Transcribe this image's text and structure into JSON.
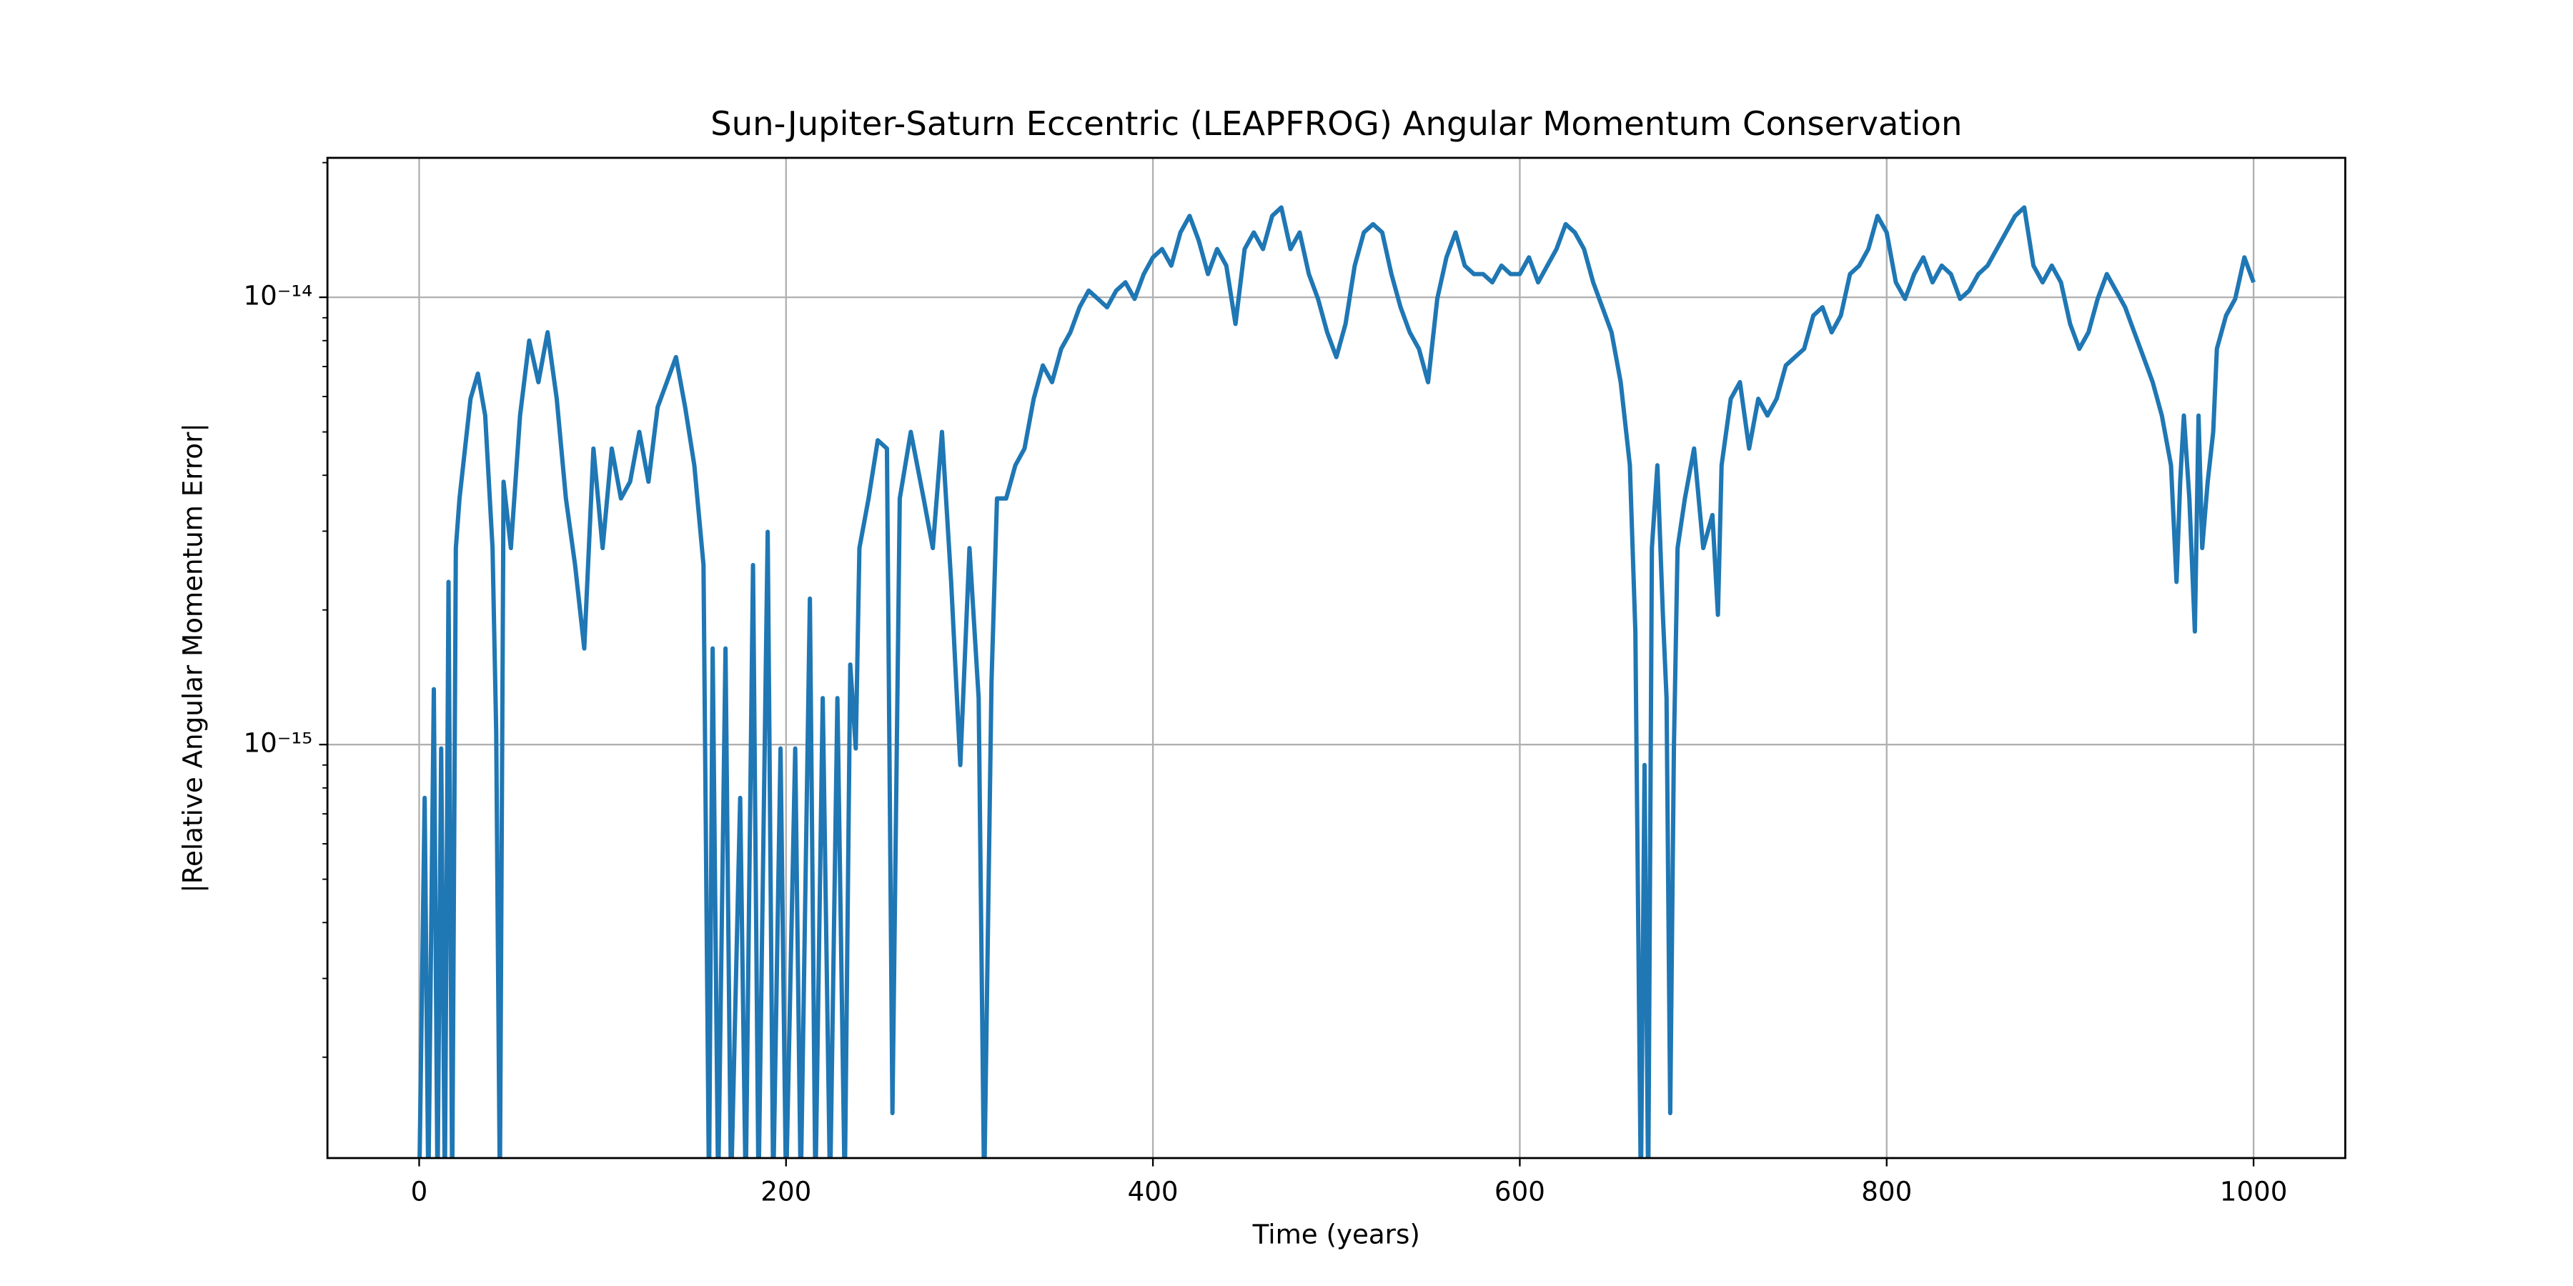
{
  "chart_data": {
    "type": "line",
    "title": "Sun-Jupiter-Saturn Eccentric (LEAPFROG) Angular Momentum Conservation",
    "xlabel": "Time (years)",
    "ylabel": "|Relative Angular Momentum Error|",
    "xlim": [
      -50,
      1050
    ],
    "ylim": [
      1.19e-16,
      2.05e-14
    ],
    "log_y": true,
    "grid": true,
    "xticks": [
      0,
      200,
      400,
      600,
      800,
      1000
    ],
    "yticks": [
      {
        "value": 1e-15,
        "label": "10⁻¹⁵"
      },
      {
        "value": 1e-14,
        "label": "10⁻¹⁴"
      }
    ],
    "yminorticks": [
      2e-16,
      3e-16,
      4e-16,
      5e-16,
      6e-16,
      7e-16,
      8e-16,
      9e-16,
      2e-15,
      3e-15,
      4e-15,
      5e-15,
      6e-15,
      7e-15,
      8e-15,
      9e-15,
      2e-14
    ],
    "series": [
      {
        "name": "Relative Angular Momentum Error",
        "color": "#1f77b4",
        "x": [
          0,
          3,
          5,
          8,
          10,
          12,
          14,
          16,
          18,
          20,
          22,
          25,
          28,
          32,
          36,
          40,
          42,
          44,
          46,
          50,
          55,
          60,
          65,
          70,
          75,
          80,
          85,
          90,
          95,
          100,
          105,
          110,
          115,
          120,
          125,
          130,
          135,
          140,
          145,
          150,
          155,
          158,
          160,
          163,
          167,
          170,
          175,
          178,
          182,
          185,
          190,
          193,
          197,
          200,
          205,
          208,
          213,
          216,
          220,
          224,
          228,
          232,
          235,
          238,
          240,
          245,
          250,
          255,
          258,
          262,
          268,
          275,
          280,
          285,
          290,
          295,
          300,
          305,
          308,
          312,
          315,
          320,
          325,
          330,
          335,
          340,
          345,
          350,
          355,
          360,
          365,
          370,
          375,
          380,
          385,
          390,
          395,
          400,
          405,
          410,
          415,
          420,
          425,
          430,
          435,
          440,
          445,
          450,
          455,
          460,
          465,
          470,
          475,
          480,
          485,
          490,
          495,
          500,
          505,
          510,
          515,
          520,
          525,
          530,
          535,
          540,
          545,
          550,
          555,
          560,
          565,
          570,
          575,
          580,
          585,
          590,
          595,
          600,
          605,
          610,
          615,
          620,
          625,
          630,
          635,
          640,
          645,
          650,
          655,
          660,
          663,
          666,
          668,
          670,
          672,
          675,
          678,
          680,
          682,
          684,
          686,
          690,
          695,
          700,
          705,
          708,
          710,
          715,
          720,
          725,
          730,
          735,
          740,
          745,
          750,
          755,
          760,
          765,
          770,
          775,
          780,
          785,
          790,
          795,
          800,
          805,
          810,
          815,
          820,
          825,
          830,
          835,
          840,
          845,
          850,
          855,
          860,
          865,
          870,
          875,
          880,
          885,
          890,
          895,
          900,
          905,
          910,
          915,
          920,
          925,
          930,
          935,
          940,
          945,
          950,
          955,
          958,
          960,
          962,
          965,
          968,
          970,
          972,
          975,
          978,
          980,
          985,
          990,
          995,
          1000
        ],
        "values": [
          1e-16,
          7.6e-16,
          1e-16,
          1.33e-15,
          1e-16,
          9.8e-16,
          1e-16,
          2.31e-15,
          1e-16,
          2.75e-15,
          3.55e-15,
          4.59e-15,
          5.93e-15,
          6.75e-15,
          5.44e-15,
          2.75e-15,
          1.07e-15,
          1e-16,
          3.87e-15,
          2.75e-15,
          5.44e-15,
          8e-15,
          6.46e-15,
          8.35e-15,
          5.93e-15,
          3.55e-15,
          2.52e-15,
          1.64e-15,
          4.59e-15,
          2.75e-15,
          4.59e-15,
          3.55e-15,
          3.87e-15,
          5e-15,
          3.87e-15,
          5.68e-15,
          6.46e-15,
          7.35e-15,
          5.68e-15,
          4.21e-15,
          2.52e-15,
          1e-16,
          1.64e-15,
          1e-16,
          1.64e-15,
          1e-16,
          7.6e-16,
          1e-16,
          2.52e-15,
          1e-16,
          2.99e-15,
          1e-16,
          9.8e-16,
          1e-16,
          9.8e-16,
          1e-16,
          2.12e-15,
          1e-16,
          1.27e-15,
          1e-16,
          1.27e-15,
          1e-16,
          1.51e-15,
          9.8e-16,
          2.75e-15,
          3.55e-15,
          4.79e-15,
          4.59e-15,
          1.5e-16,
          3.55e-15,
          5e-15,
          3.55e-15,
          2.75e-15,
          5e-15,
          2.31e-15,
          9e-16,
          2.75e-15,
          1.27e-15,
          1e-16,
          1.38e-15,
          3.55e-15,
          3.55e-15,
          4.21e-15,
          4.59e-15,
          5.93e-15,
          7.04e-15,
          6.46e-15,
          7.67e-15,
          8.35e-15,
          9.5e-15,
          1.035e-14,
          9.92e-15,
          9.5e-15,
          1.035e-14,
          1.08e-14,
          9.92e-15,
          1.127e-14,
          1.228e-14,
          1.282e-14,
          1.177e-14,
          1.396e-14,
          1.52e-14,
          1.338e-14,
          1.127e-14,
          1.282e-14,
          1.177e-14,
          8.72e-15,
          1.282e-14,
          1.396e-14,
          1.282e-14,
          1.52e-14,
          1.588e-14,
          1.282e-14,
          1.396e-14,
          1.127e-14,
          9.92e-15,
          8.35e-15,
          7.35e-15,
          8.72e-15,
          1.177e-14,
          1.396e-14,
          1.457e-14,
          1.396e-14,
          1.127e-14,
          9.5e-15,
          8.35e-15,
          7.67e-15,
          6.46e-15,
          9.92e-15,
          1.228e-14,
          1.396e-14,
          1.177e-14,
          1.127e-14,
          1.127e-14,
          1.08e-14,
          1.177e-14,
          1.127e-14,
          1.127e-14,
          1.228e-14,
          1.08e-14,
          1.177e-14,
          1.282e-14,
          1.457e-14,
          1.396e-14,
          1.282e-14,
          1.08e-14,
          9.5e-15,
          8.35e-15,
          6.46e-15,
          4.21e-15,
          1.79e-15,
          1e-16,
          9e-16,
          1e-16,
          2.75e-15,
          4.21e-15,
          1.95e-15,
          1.27e-15,
          1.5e-16,
          9.8e-16,
          2.75e-15,
          3.55e-15,
          4.59e-15,
          2.75e-15,
          3.26e-15,
          1.95e-15,
          4.21e-15,
          5.93e-15,
          6.46e-15,
          4.59e-15,
          5.93e-15,
          5.44e-15,
          5.93e-15,
          7.04e-15,
          7.35e-15,
          7.67e-15,
          9.1e-15,
          9.5e-15,
          8.35e-15,
          9.1e-15,
          1.127e-14,
          1.177e-14,
          1.282e-14,
          1.52e-14,
          1.396e-14,
          1.08e-14,
          9.92e-15,
          1.127e-14,
          1.228e-14,
          1.08e-14,
          1.177e-14,
          1.127e-14,
          9.92e-15,
          1.035e-14,
          1.127e-14,
          1.177e-14,
          1.282e-14,
          1.396e-14,
          1.52e-14,
          1.588e-14,
          1.177e-14,
          1.08e-14,
          1.177e-14,
          1.08e-14,
          8.72e-15,
          7.67e-15,
          8.35e-15,
          9.92e-15,
          1.127e-14,
          1.035e-14,
          9.5e-15,
          8.35e-15,
          7.35e-15,
          6.46e-15,
          5.44e-15,
          4.21e-15,
          2.31e-15,
          3.87e-15,
          5.44e-15,
          3.55e-15,
          1.79e-15,
          5.44e-15,
          2.75e-15,
          3.87e-15,
          5e-15,
          7.67e-15,
          9.1e-15,
          9.92e-15,
          1.228e-14,
          1.08e-14
        ]
      }
    ]
  }
}
